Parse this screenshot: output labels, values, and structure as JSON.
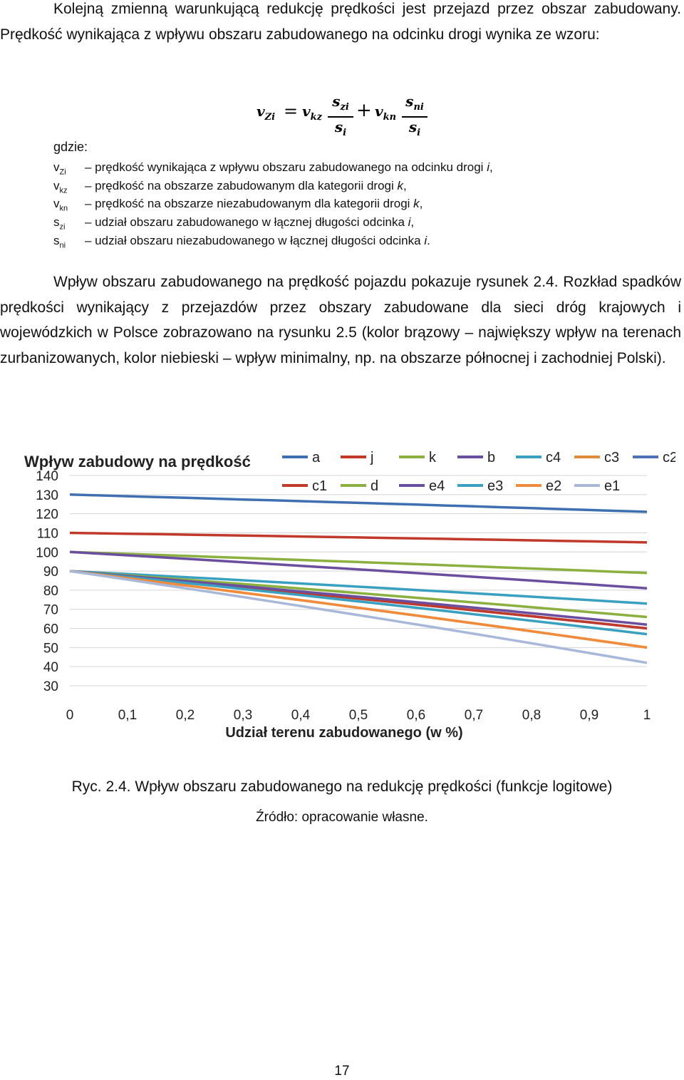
{
  "intro": {
    "p1_text": "Kolejną zmienną warunkującą redukcję prędkości jest przejazd przez obszar zabudowany. Prędkość wynikająca z wpływu obszaru zabudowanego na odcinku drogi wynika ze wzoru:"
  },
  "formula": {
    "lhs": "v",
    "lhs_sub": "Zi",
    "eq": "=",
    "t1": "v",
    "t1_sub": "kz",
    "f1_num": "s",
    "f1_num_sub": "zi",
    "f1_den": "s",
    "f1_den_sub": "i",
    "plus": "+",
    "t2": "v",
    "t2_sub": "kn",
    "f2_num": "s",
    "f2_num_sub": "ni",
    "f2_den": "s",
    "f2_den_sub": "i"
  },
  "where": {
    "label": "gdzie:",
    "items": [
      {
        "sym": "v",
        "sub": "Zi",
        "desc": "– prędkość wynikająca z wpływu obszaru zabudowanego na odcinku drogi",
        "var": "i",
        "end": ","
      },
      {
        "sym": "v",
        "sub": "kz",
        "desc": "– prędkość na obszarze zabudowanym dla kategorii drogi",
        "var": "k",
        "end": ","
      },
      {
        "sym": "v",
        "sub": "kn",
        "desc": "– prędkość na obszarze niezabudowanym dla kategorii drogi",
        "var": "k",
        "end": ","
      },
      {
        "sym": "s",
        "sub": "zi",
        "desc": "– udział obszaru zabudowanego w łącznej długości odcinka",
        "var": "i",
        "end": ","
      },
      {
        "sym": "s",
        "sub": "ni",
        "desc": "– udział obszaru niezabudowanego w łącznej długości odcinka",
        "var": "i",
        "end": "."
      }
    ]
  },
  "body": {
    "p2_text": "Wpływ obszaru zabudowanego na prędkość pojazdu pokazuje rysunek 2.4. Rozkład spadków prędkości wynikający z przejazdów przez obszary zabudowane dla sieci dróg krajowych i wojewódzkich w Polsce zobrazowano na rysunku 2.5 (kolor brązowy – największy wpływ na terenach zurbanizowanych, kolor niebieski – wpływ minimalny, np. na obszarze północnej i zachodniej Polski)."
  },
  "chart_data": {
    "type": "line",
    "title": "Wpływ zabudowy na prędkość",
    "xlabel": "Udział terenu zabudowanego (w %)",
    "ylabel": "",
    "x": [
      0,
      0.1,
      0.2,
      0.3,
      0.4,
      0.5,
      0.6,
      0.7,
      0.8,
      0.9,
      1
    ],
    "x_tick_labels": [
      "0",
      "0,1",
      "0,2",
      "0,3",
      "0,4",
      "0,5",
      "0,6",
      "0,7",
      "0,8",
      "0,9",
      "1"
    ],
    "ylim": [
      30,
      140
    ],
    "y_ticks": [
      30,
      40,
      50,
      60,
      70,
      80,
      90,
      100,
      110,
      120,
      130,
      140
    ],
    "grid": "horizontal",
    "legend_position": "top-right",
    "series": [
      {
        "name": "a",
        "color": "#3f6fb0",
        "start": 130,
        "end": 121
      },
      {
        "name": "j",
        "color": "#c0392b",
        "start": 110,
        "end": 105
      },
      {
        "name": "k",
        "color": "#8bb03f",
        "start": 100,
        "end": 89
      },
      {
        "name": "b",
        "color": "#6b4f9e",
        "start": 100,
        "end": 81
      },
      {
        "name": "c4",
        "color": "#3aa0c0",
        "start": 90,
        "end": 73
      },
      {
        "name": "c3",
        "color": "#e08a3c",
        "start": 90,
        "end": 50
      },
      {
        "name": "c2",
        "color": "#4f6fb6",
        "start": 90,
        "end": 60
      },
      {
        "name": "c1",
        "color": "#c0392b",
        "start": 90,
        "end": 60
      },
      {
        "name": "d",
        "color": "#8bb03f",
        "start": 90,
        "end": 66
      },
      {
        "name": "e4",
        "color": "#6b4f9e",
        "start": 90,
        "end": 62
      },
      {
        "name": "e3",
        "color": "#3aa0c0",
        "start": 90,
        "end": 57
      },
      {
        "name": "e2",
        "color": "#f08a3c",
        "start": 90,
        "end": 50
      },
      {
        "name": "e1",
        "color": "#a9b8d8",
        "start": 90,
        "end": 42
      }
    ]
  },
  "figure": {
    "caption": "Ryc. 2.4. Wpływ obszaru zabudowanego na redukcję prędkości (funkcje logitowe)",
    "source": "Źródło: opracowanie własne."
  },
  "page": {
    "number": "17"
  }
}
